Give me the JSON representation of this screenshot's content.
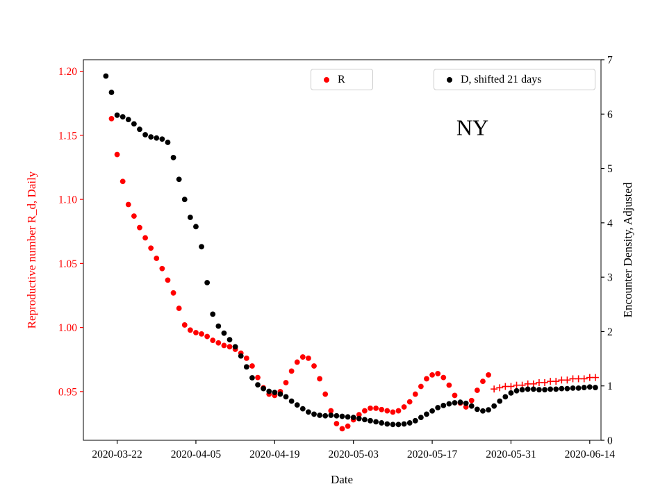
{
  "figure": {
    "annotation": "NY"
  },
  "legends": [
    {
      "label": "R",
      "color": "#ff0000"
    },
    {
      "label": "D, shifted 21 days",
      "color": "#000000"
    }
  ],
  "chart_data": {
    "type": "scatter",
    "title": "",
    "annotation": "NY",
    "xlabel": "Date",
    "x_day0": "2020-03-16",
    "x_axis": {
      "range_days": [
        0,
        92
      ],
      "tick_days": [
        6,
        20,
        34,
        48,
        62,
        76,
        90
      ],
      "tick_labels": [
        "2020-03-22",
        "2020-04-05",
        "2020-04-19",
        "2020-05-03",
        "2020-05-17",
        "2020-05-31",
        "2020-06-14"
      ]
    },
    "y_left": {
      "label": "Reproductive number R_d, Daily",
      "color": "#ff0000",
      "range": [
        0.912,
        1.209
      ],
      "ticks": [
        0.95,
        1.0,
        1.05,
        1.1,
        1.15,
        1.2
      ],
      "tick_labels": [
        "0.95",
        "1.00",
        "1.05",
        "1.10",
        "1.15",
        "1.20"
      ]
    },
    "y_right": {
      "label": "Encounter Density, Adjusted",
      "color": "#000000",
      "range": [
        0,
        7
      ],
      "ticks": [
        0,
        1,
        2,
        3,
        4,
        5,
        6,
        7
      ],
      "tick_labels": [
        "0",
        "1",
        "2",
        "3",
        "4",
        "5",
        "6",
        "7"
      ]
    },
    "legend_position": "upper center / upper right",
    "grid": false,
    "series": [
      {
        "name": "R",
        "legend": "R",
        "marker": "dot",
        "color": "#ff0000",
        "axis": "left",
        "start_day": 5,
        "start_date": "2020-03-21",
        "values": [
          1.163,
          1.135,
          1.114,
          1.096,
          1.087,
          1.078,
          1.07,
          1.062,
          1.054,
          1.046,
          1.037,
          1.027,
          1.015,
          1.002,
          0.998,
          0.996,
          0.995,
          0.993,
          0.99,
          0.988,
          0.986,
          0.985,
          0.983,
          0.98,
          0.976,
          0.97,
          0.961,
          0.953,
          0.948,
          0.947,
          0.95,
          0.957,
          0.966,
          0.973,
          0.977,
          0.976,
          0.97,
          0.96,
          0.948,
          0.935,
          0.925,
          0.921,
          0.923,
          0.928,
          0.932,
          0.935,
          0.937,
          0.937,
          0.936,
          0.935,
          0.934,
          0.935,
          0.938,
          0.942,
          0.948,
          0.954,
          0.96,
          0.963,
          0.964,
          0.961,
          0.955,
          0.947,
          0.941,
          0.938,
          0.943,
          0.951,
          0.958,
          0.963
        ]
      },
      {
        "name": "R-forecast",
        "legend": "",
        "marker": "plus",
        "color": "#ff0000",
        "axis": "left",
        "start_day": 73,
        "start_date": "2020-05-28",
        "values": [
          0.952,
          0.953,
          0.954,
          0.954,
          0.955,
          0.955,
          0.956,
          0.956,
          0.957,
          0.957,
          0.958,
          0.958,
          0.959,
          0.959,
          0.96,
          0.96,
          0.96,
          0.961,
          0.961
        ]
      },
      {
        "name": "D-shifted-21-days",
        "legend": "D, shifted 21 days",
        "marker": "dot",
        "color": "#000000",
        "axis": "right",
        "start_day": 4,
        "start_date": "2020-03-20",
        "values": [
          6.7,
          6.4,
          5.98,
          5.95,
          5.9,
          5.82,
          5.72,
          5.62,
          5.58,
          5.56,
          5.54,
          5.48,
          5.2,
          4.8,
          4.43,
          4.1,
          3.93,
          3.56,
          2.9,
          2.32,
          2.1,
          1.97,
          1.85,
          1.72,
          1.55,
          1.35,
          1.15,
          1.02,
          0.95,
          0.9,
          0.88,
          0.85,
          0.8,
          0.72,
          0.65,
          0.58,
          0.52,
          0.48,
          0.46,
          0.45,
          0.46,
          0.45,
          0.44,
          0.43,
          0.42,
          0.4,
          0.38,
          0.36,
          0.34,
          0.32,
          0.3,
          0.29,
          0.29,
          0.3,
          0.32,
          0.36,
          0.42,
          0.48,
          0.54,
          0.6,
          0.64,
          0.67,
          0.69,
          0.7,
          0.68,
          0.63,
          0.57,
          0.54,
          0.56,
          0.63,
          0.72,
          0.8,
          0.87,
          0.91,
          0.93,
          0.94,
          0.94,
          0.93,
          0.93,
          0.94,
          0.94,
          0.95,
          0.95,
          0.96,
          0.96,
          0.97,
          0.98,
          0.97
        ]
      }
    ]
  }
}
